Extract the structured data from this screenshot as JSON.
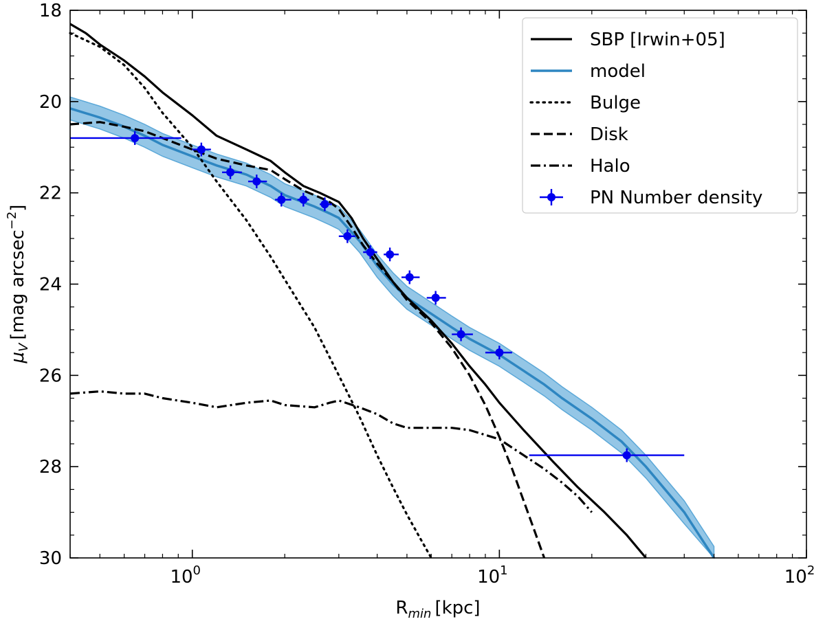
{
  "chart_data": {
    "type": "line",
    "xscale": "log",
    "xlim": [
      0.4,
      100
    ],
    "ylim": [
      18,
      30
    ],
    "yinverted": true,
    "xlabel_main": "R",
    "xlabel_sub": "min",
    "xlabel_unit": "[kpc]",
    "ylabel_sym": "μ",
    "ylabel_sub": "V",
    "ylabel_unit": "[mag arcsec",
    "ylabel_exp": "−2",
    "ylabel_close": "]",
    "xticks": [
      {
        "value": 1,
        "base": "10",
        "exp": "0"
      },
      {
        "value": 10,
        "base": "10",
        "exp": "1"
      },
      {
        "value": 100,
        "base": "10",
        "exp": "2"
      }
    ],
    "yticks": [
      {
        "value": 18,
        "label": "18"
      },
      {
        "value": 20,
        "label": "20"
      },
      {
        "value": 22,
        "label": "22"
      },
      {
        "value": 24,
        "label": "24"
      },
      {
        "value": 26,
        "label": "26"
      },
      {
        "value": 28,
        "label": "28"
      },
      {
        "value": 30,
        "label": "30"
      }
    ],
    "colors": {
      "sbp": "#000000",
      "model": "#2e86c1",
      "band": "#5ba8d8",
      "pn": "#0000ee"
    },
    "series": [
      {
        "name": "SBP [Irwin+05]",
        "style": "solid",
        "x": [
          0.4,
          0.45,
          0.5,
          0.6,
          0.7,
          0.8,
          1.0,
          1.2,
          1.5,
          1.8,
          2.0,
          2.3,
          2.6,
          3.0,
          3.3,
          3.6,
          4.0,
          4.5,
          5.0,
          6.0,
          7.0,
          8.0,
          9.0,
          10,
          12,
          15,
          18,
          22,
          26,
          30
        ],
        "y": [
          18.3,
          18.5,
          18.75,
          19.1,
          19.45,
          19.8,
          20.3,
          20.75,
          21.05,
          21.3,
          21.55,
          21.85,
          22.0,
          22.2,
          22.55,
          23.0,
          23.45,
          23.95,
          24.3,
          24.8,
          25.3,
          25.8,
          26.2,
          26.6,
          27.2,
          27.9,
          28.45,
          29.0,
          29.5,
          30.0
        ]
      },
      {
        "name": "model",
        "style": "band",
        "x": [
          0.4,
          0.5,
          0.6,
          0.7,
          0.8,
          1.0,
          1.2,
          1.5,
          1.8,
          2.0,
          2.5,
          2.8,
          3.0,
          3.5,
          4.0,
          4.5,
          5.0,
          6.0,
          7.0,
          8.0,
          10,
          12,
          14,
          16,
          20,
          25,
          30,
          40,
          50
        ],
        "y": [
          20.15,
          20.35,
          20.55,
          20.75,
          20.95,
          21.2,
          21.4,
          21.6,
          21.85,
          22.05,
          22.3,
          22.45,
          22.55,
          23.05,
          23.6,
          24.0,
          24.3,
          24.65,
          24.95,
          25.2,
          25.55,
          25.9,
          26.2,
          26.5,
          26.95,
          27.45,
          28.0,
          29.0,
          30.0
        ],
        "band_width": 0.5
      },
      {
        "name": "Bulge",
        "style": "dotted",
        "x": [
          0.4,
          0.5,
          0.6,
          0.7,
          0.8,
          1.0,
          1.2,
          1.5,
          1.8,
          2.0,
          2.5,
          3.0,
          3.5,
          4.0,
          4.5,
          5.0,
          5.5,
          6.0
        ],
        "y": [
          18.5,
          18.8,
          19.2,
          19.7,
          20.25,
          21.0,
          21.75,
          22.6,
          23.4,
          23.9,
          24.95,
          26.0,
          26.9,
          27.75,
          28.45,
          29.05,
          29.55,
          30.0
        ]
      },
      {
        "name": "Disk",
        "style": "dashed",
        "x": [
          0.4,
          0.5,
          0.6,
          0.7,
          0.8,
          1.0,
          1.2,
          1.5,
          1.8,
          2.0,
          2.3,
          2.6,
          2.8,
          3.0,
          3.3,
          3.6,
          4.0,
          4.5,
          5.0,
          6.0,
          7.0,
          8.0,
          9.0,
          10,
          11,
          12,
          13,
          14
        ],
        "y": [
          20.5,
          20.45,
          20.55,
          20.65,
          20.8,
          21.05,
          21.25,
          21.4,
          21.5,
          21.7,
          21.95,
          22.1,
          22.2,
          22.35,
          22.75,
          23.15,
          23.55,
          23.95,
          24.35,
          24.85,
          25.4,
          26.0,
          26.65,
          27.35,
          28.05,
          28.75,
          29.4,
          30.0
        ]
      },
      {
        "name": "Halo",
        "style": "dashdot",
        "x": [
          0.4,
          0.5,
          0.6,
          0.7,
          0.8,
          1.0,
          1.2,
          1.5,
          1.8,
          2.0,
          2.5,
          2.8,
          3.0,
          3.5,
          4.0,
          4.5,
          5.0,
          6.0,
          7.0,
          8.0,
          10,
          12,
          14,
          16,
          18,
          20
        ],
        "y": [
          26.4,
          26.35,
          26.4,
          26.4,
          26.5,
          26.6,
          26.7,
          26.6,
          26.55,
          26.65,
          26.7,
          26.6,
          26.55,
          26.7,
          26.85,
          27.05,
          27.15,
          27.15,
          27.15,
          27.2,
          27.4,
          27.75,
          28.05,
          28.35,
          28.65,
          29.0
        ]
      }
    ],
    "pn_points": {
      "name": "PN Number density",
      "x": [
        0.65,
        1.07,
        1.33,
        1.62,
        1.95,
        2.3,
        2.7,
        3.2,
        3.8,
        4.4,
        5.1,
        6.2,
        7.5,
        10.0,
        26.0
      ],
      "y": [
        20.8,
        21.05,
        21.55,
        21.75,
        22.15,
        22.15,
        22.25,
        22.95,
        23.3,
        23.35,
        23.85,
        24.3,
        25.1,
        25.5,
        27.75
      ],
      "xerr_lo": [
        0.4,
        1.0,
        1.25,
        1.52,
        1.86,
        2.2,
        2.6,
        3.0,
        3.6,
        4.2,
        4.8,
        5.8,
        7.0,
        9.0,
        12.5
      ],
      "xerr_hi": [
        0.92,
        1.15,
        1.45,
        1.75,
        2.1,
        2.4,
        2.85,
        3.4,
        4.0,
        4.7,
        5.5,
        6.7,
        8.2,
        11.0,
        40.0
      ],
      "yerr": [
        0.15,
        0.15,
        0.15,
        0.15,
        0.15,
        0.15,
        0.15,
        0.15,
        0.15,
        0.15,
        0.15,
        0.15,
        0.15,
        0.15,
        0.15
      ]
    },
    "legend": {
      "placement": "top-right",
      "entries": [
        {
          "label": "SBP [Irwin+05]",
          "style": "solid"
        },
        {
          "label": "model",
          "style": "model"
        },
        {
          "label": "Bulge",
          "style": "dotted"
        },
        {
          "label": "Disk",
          "style": "dashed"
        },
        {
          "label": "Halo",
          "style": "dashdot"
        },
        {
          "label": "PN Number density",
          "style": "marker"
        }
      ]
    }
  }
}
